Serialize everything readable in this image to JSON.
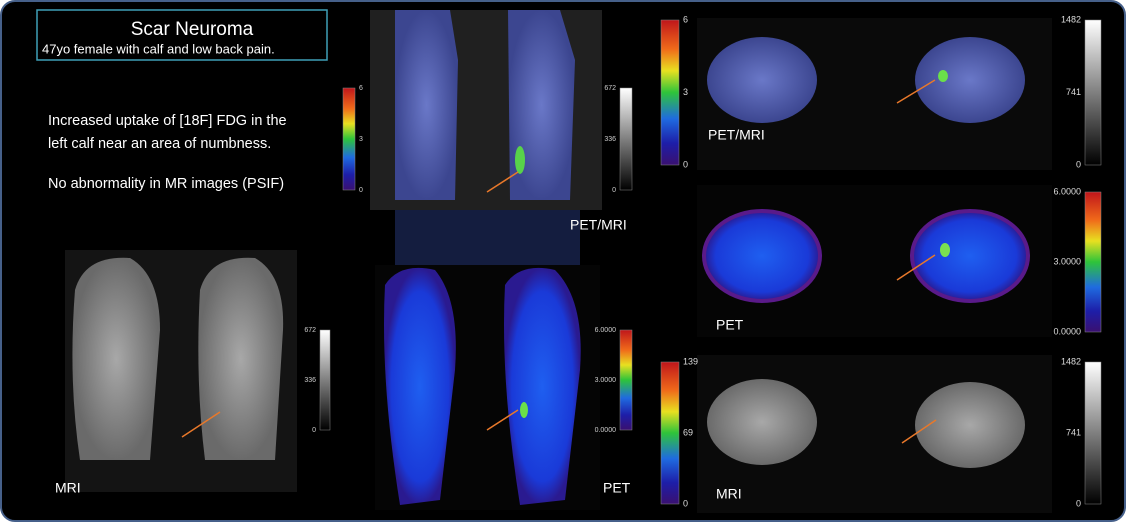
{
  "title": "Scar Neuroma",
  "subtitle": "47yo female with calf and low back pain.",
  "description": [
    "Increased uptake of [18F] FDG in the",
    "left calf near an area of numbness.",
    "No abnormality in MR images (PSIF)"
  ],
  "panels": [
    {
      "label": "PET/MRI"
    },
    {
      "label": "MRI"
    },
    {
      "label": "PET"
    },
    {
      "label": "PET/MRI"
    },
    {
      "label": "PET"
    },
    {
      "label": "MRI"
    }
  ],
  "colorbars": [
    {
      "ticks": [
        "6",
        "3",
        "0"
      ]
    },
    {
      "ticks": [
        "672",
        "336",
        "0"
      ]
    },
    {
      "ticks": [
        "672",
        "336",
        "0"
      ]
    },
    {
      "ticks": [
        "6.0000",
        "3.0000",
        "0.0000"
      ]
    },
    {
      "ticks": [
        "6",
        "3",
        "0"
      ]
    },
    {
      "ticks": [
        "139",
        "69",
        "0"
      ]
    },
    {
      "ticks": [
        "1482",
        "741",
        "0"
      ]
    },
    {
      "ticks": [
        "6.0000",
        "3.0000",
        "0.0000"
      ]
    },
    {
      "ticks": [
        "1482",
        "741",
        "0"
      ]
    }
  ]
}
